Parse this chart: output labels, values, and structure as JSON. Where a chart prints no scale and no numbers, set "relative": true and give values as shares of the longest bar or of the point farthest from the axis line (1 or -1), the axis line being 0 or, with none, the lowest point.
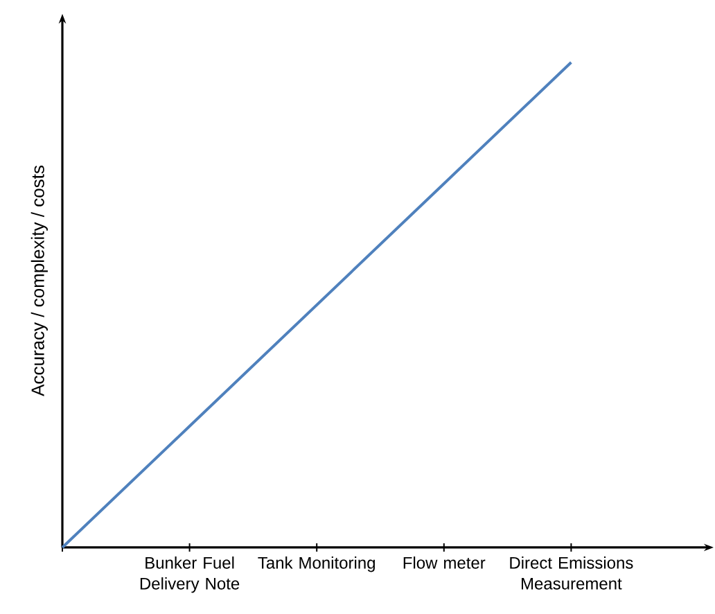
{
  "chart_data": {
    "type": "line",
    "ylabel": "Accuracy / complexity / costs",
    "relative": true,
    "categories": [
      null,
      "Bunker Fuel Delivery Note",
      "Tank Monitoring",
      "Flow meter",
      "Direct Emissions Measurement"
    ],
    "series": [
      {
        "color": "#4f81bd",
        "values": [
          0,
          0.25,
          0.5,
          0.75,
          1.0
        ]
      }
    ],
    "marker": "none",
    "line_style": "solid"
  }
}
